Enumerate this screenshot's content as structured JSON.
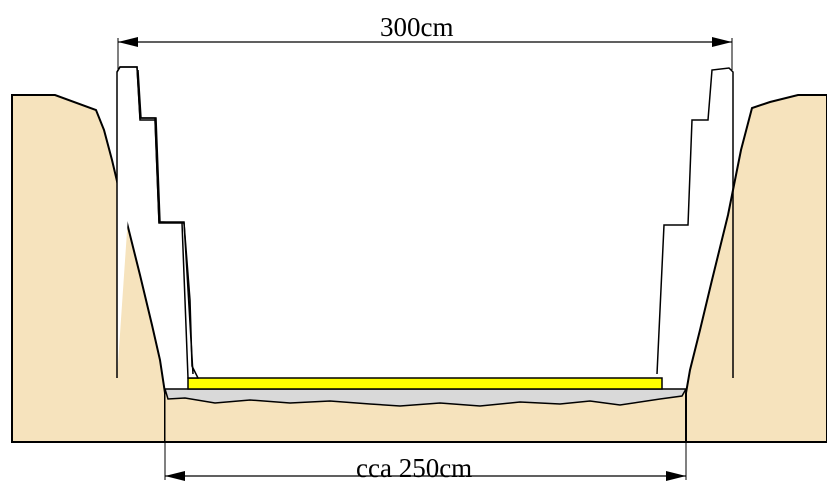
{
  "dimensions": {
    "top_width": "300cm",
    "bottom_width": "cca 250cm"
  },
  "colors": {
    "soil": "#f6e3bd",
    "bedding": "#d9d9d9",
    "slab": "#ffff00",
    "outline": "#000000",
    "background": "#ffffff"
  }
}
